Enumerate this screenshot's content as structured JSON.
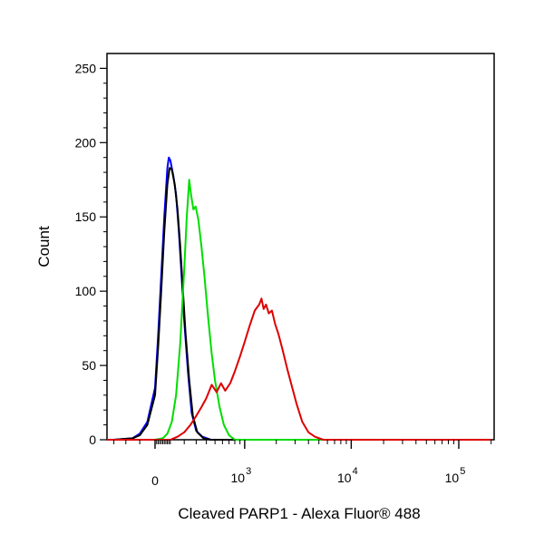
{
  "chart_data": {
    "type": "line",
    "xlabel": "Cleaved PARP1 - Alexa Fluor® 488",
    "ylabel": "Count",
    "ylim": [
      0,
      260
    ],
    "x_scale": "biexponential",
    "grid": false,
    "y_ticks": [
      {
        "value": 0,
        "label": "0"
      },
      {
        "value": 50,
        "label": "50"
      },
      {
        "value": 100,
        "label": "100"
      },
      {
        "value": 150,
        "label": "150"
      },
      {
        "value": 200,
        "label": "200"
      },
      {
        "value": 250,
        "label": "250"
      }
    ],
    "x_ticks": [
      {
        "value": 0,
        "label": "0",
        "base": "",
        "exp": ""
      },
      {
        "value": 1000,
        "label": "10^3",
        "base": "10",
        "exp": "3"
      },
      {
        "value": 10000,
        "label": "10^4",
        "base": "10",
        "exp": "4"
      },
      {
        "value": 100000,
        "label": "10^5",
        "base": "10",
        "exp": "5"
      }
    ],
    "series": [
      {
        "color": "#0000ff",
        "points": [
          [
            -600,
            0
          ],
          [
            -300,
            0
          ],
          [
            -150,
            1
          ],
          [
            -100,
            4
          ],
          [
            -50,
            12
          ],
          [
            0,
            35
          ],
          [
            20,
            70
          ],
          [
            40,
            110
          ],
          [
            60,
            150
          ],
          [
            80,
            183
          ],
          [
            90,
            190
          ],
          [
            100,
            188
          ],
          [
            120,
            178
          ],
          [
            140,
            165
          ],
          [
            160,
            140
          ],
          [
            180,
            110
          ],
          [
            200,
            80
          ],
          [
            230,
            45
          ],
          [
            260,
            18
          ],
          [
            300,
            6
          ],
          [
            360,
            2
          ],
          [
            450,
            0
          ],
          [
            2000,
            0
          ],
          [
            200000,
            0
          ]
        ]
      },
      {
        "color": "#000000",
        "points": [
          [
            -600,
            0
          ],
          [
            -300,
            0
          ],
          [
            -150,
            1
          ],
          [
            -100,
            3
          ],
          [
            -50,
            10
          ],
          [
            0,
            30
          ],
          [
            20,
            62
          ],
          [
            40,
            100
          ],
          [
            60,
            140
          ],
          [
            80,
            172
          ],
          [
            95,
            183
          ],
          [
            110,
            182
          ],
          [
            130,
            172
          ],
          [
            150,
            155
          ],
          [
            170,
            130
          ],
          [
            190,
            100
          ],
          [
            210,
            72
          ],
          [
            240,
            40
          ],
          [
            270,
            16
          ],
          [
            310,
            5
          ],
          [
            370,
            1
          ],
          [
            450,
            0
          ],
          [
            2000,
            0
          ],
          [
            200000,
            0
          ]
        ]
      },
      {
        "color": "#00dd00",
        "points": [
          [
            -600,
            0
          ],
          [
            0,
            0
          ],
          [
            50,
            1
          ],
          [
            80,
            4
          ],
          [
            110,
            12
          ],
          [
            140,
            30
          ],
          [
            170,
            65
          ],
          [
            200,
            115
          ],
          [
            220,
            150
          ],
          [
            240,
            175
          ],
          [
            255,
            165
          ],
          [
            275,
            155
          ],
          [
            295,
            157
          ],
          [
            320,
            148
          ],
          [
            350,
            130
          ],
          [
            380,
            110
          ],
          [
            420,
            82
          ],
          [
            460,
            58
          ],
          [
            500,
            40
          ],
          [
            560,
            22
          ],
          [
            620,
            10
          ],
          [
            700,
            3
          ],
          [
            800,
            0
          ],
          [
            200000,
            0
          ]
        ]
      },
      {
        "color": "#dd0000",
        "points": [
          [
            -600,
            0
          ],
          [
            100,
            0
          ],
          [
            150,
            2
          ],
          [
            200,
            5
          ],
          [
            250,
            10
          ],
          [
            300,
            16
          ],
          [
            350,
            22
          ],
          [
            400,
            28
          ],
          [
            460,
            37
          ],
          [
            520,
            32
          ],
          [
            580,
            38
          ],
          [
            640,
            33
          ],
          [
            720,
            38
          ],
          [
            800,
            46
          ],
          [
            900,
            56
          ],
          [
            1000,
            66
          ],
          [
            1120,
            77
          ],
          [
            1250,
            87
          ],
          [
            1380,
            91
          ],
          [
            1450,
            95
          ],
          [
            1520,
            88
          ],
          [
            1600,
            91
          ],
          [
            1700,
            85
          ],
          [
            1820,
            87
          ],
          [
            1950,
            78
          ],
          [
            2100,
            71
          ],
          [
            2300,
            60
          ],
          [
            2550,
            47
          ],
          [
            2800,
            36
          ],
          [
            3100,
            24
          ],
          [
            3500,
            12
          ],
          [
            4000,
            5
          ],
          [
            4600,
            2
          ],
          [
            5500,
            0
          ],
          [
            200000,
            0
          ]
        ]
      }
    ]
  }
}
